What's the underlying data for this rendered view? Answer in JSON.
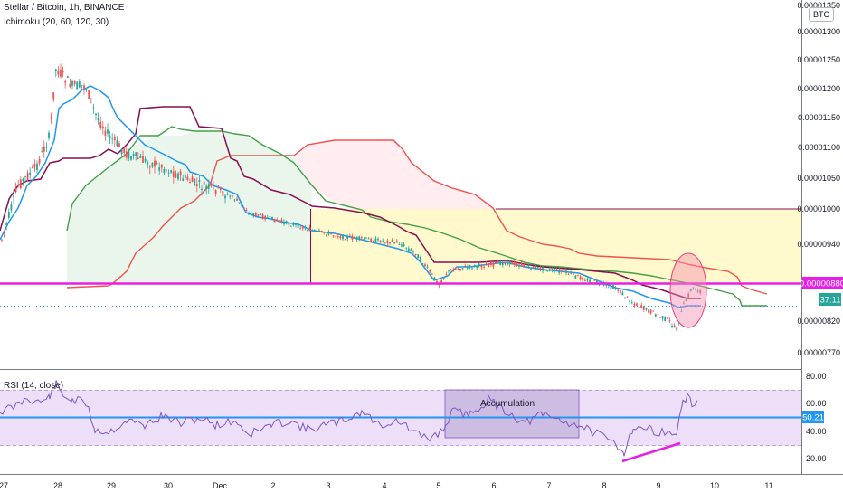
{
  "header": {
    "symbol_line": "Stellar / Bitcoin, 1h, BINANCE",
    "indicator_line": "Ichimoku (20, 60, 120, 30)",
    "quote_currency": "BTC"
  },
  "rsi_pane": {
    "label": "RSI (14, close)",
    "annotation": "Accumulation",
    "current_value": "50.21",
    "y_ticks": [
      "80.00",
      "60.00",
      "40.00",
      "20.00"
    ]
  },
  "price_pane": {
    "y_ticks": [
      "0.00001350",
      "0.00001300",
      "0.00001250",
      "0.00001200",
      "0.00001150",
      "0.00001100",
      "0.00001050",
      "0.00001000",
      "0.00000940",
      "0.00000880",
      "0.00000820",
      "0.00000770"
    ],
    "last_price_label": "0.00000880",
    "countdown_label": "37:11"
  },
  "x_axis": {
    "ticks": [
      "27",
      "28",
      "29",
      "30",
      "Dec",
      "2",
      "3",
      "4",
      "5",
      "6",
      "7",
      "8",
      "9",
      "10",
      "11"
    ]
  },
  "colors": {
    "candle_up": "#26a69a",
    "candle_down": "#ef5350",
    "conversion_line": "#2196f3",
    "base_line": "#880e4f",
    "lagging_span": "#4caf50",
    "span_a": "#43a047",
    "span_b": "#ef5350",
    "support_line": "#e91ee6",
    "rsi_line": "#7e57c2",
    "rsi_band": "#e9d7f5",
    "rsi_mid": "#2196f3",
    "zone_fill": "#fff9c4"
  },
  "chart_data": [
    {
      "type": "line",
      "title": "Stellar / Bitcoin, 1h, BINANCE",
      "ylim": [
        7.5e-06,
        1.36e-05
      ],
      "series": [
        {
          "name": "Ichimoku (20, 60, 120, 30)",
          "x": [
            "27",
            "28",
            "29",
            "30",
            "Dec",
            "2",
            "3",
            "4",
            "5",
            "6",
            "7",
            "8",
            "9",
            "10"
          ],
          "values": [
            9.5e-06,
            1.18e-05,
            1.14e-05,
            1.07e-05,
            1.04e-05,
            9.6e-06,
            9.3e-06,
            9.2e-06,
            8.8e-06,
            8.9e-06,
            8.8e-06,
            8.6e-06,
            8.2e-06,
            8.8e-06
          ]
        }
      ]
    },
    {
      "type": "line",
      "title": "RSI (14, close)",
      "ylim": [
        10,
        85
      ],
      "series": [
        {
          "name": "RSI (14, close)",
          "x": [
            "27",
            "28",
            "29",
            "30",
            "Dec",
            "2",
            "3",
            "4",
            "5",
            "6",
            "7",
            "8",
            "9",
            "10"
          ],
          "values": [
            52,
            68,
            45,
            47,
            44,
            45,
            48,
            49,
            38,
            55,
            52,
            42,
            30,
            63
          ]
        }
      ]
    }
  ]
}
